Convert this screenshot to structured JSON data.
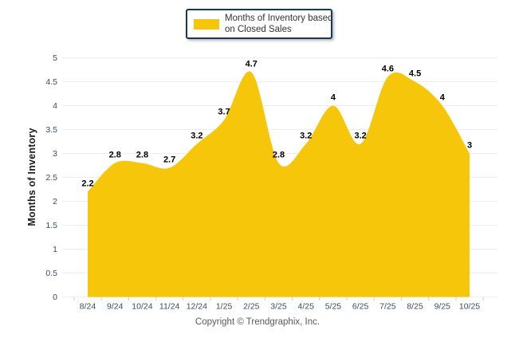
{
  "legend": {
    "line1": "Months of Inventory based",
    "line2": "on Closed Sales"
  },
  "footer": {
    "copyright": "Copyright © Trendgraphix, Inc."
  },
  "chart_data": {
    "type": "area",
    "title": "",
    "xlabel": "",
    "ylabel": "Months of Inventory",
    "categories": [
      "8/24",
      "9/24",
      "10/24",
      "11/24",
      "12/24",
      "1/25",
      "2/25",
      "3/25",
      "4/25",
      "5/25",
      "6/25",
      "7/25",
      "8/25",
      "9/25",
      "10/25"
    ],
    "series": [
      {
        "name": "Months of Inventory based on Closed Sales",
        "values": [
          2.2,
          2.8,
          2.8,
          2.7,
          3.2,
          3.7,
          4.7,
          2.8,
          3.2,
          4,
          3.2,
          4.6,
          4.5,
          4,
          3
        ]
      }
    ],
    "ylim": [
      0,
      5
    ],
    "yticks": [
      0,
      0.5,
      1,
      1.5,
      2,
      2.5,
      3,
      3.5,
      4,
      4.5,
      5
    ],
    "grid": true,
    "legend_position": "top-center",
    "smooth": true,
    "data_labels": true,
    "colors": {
      "area": "#F6C60A",
      "legend_border": "#17375D",
      "grid": "#ededed",
      "axis_line": "#e0e0e0",
      "tick_mark": "#cccccc",
      "tick_label": "#3D4A63",
      "data_label": "#000000",
      "axis_title": "#1a1a1a",
      "footer_text": "#595959"
    }
  }
}
